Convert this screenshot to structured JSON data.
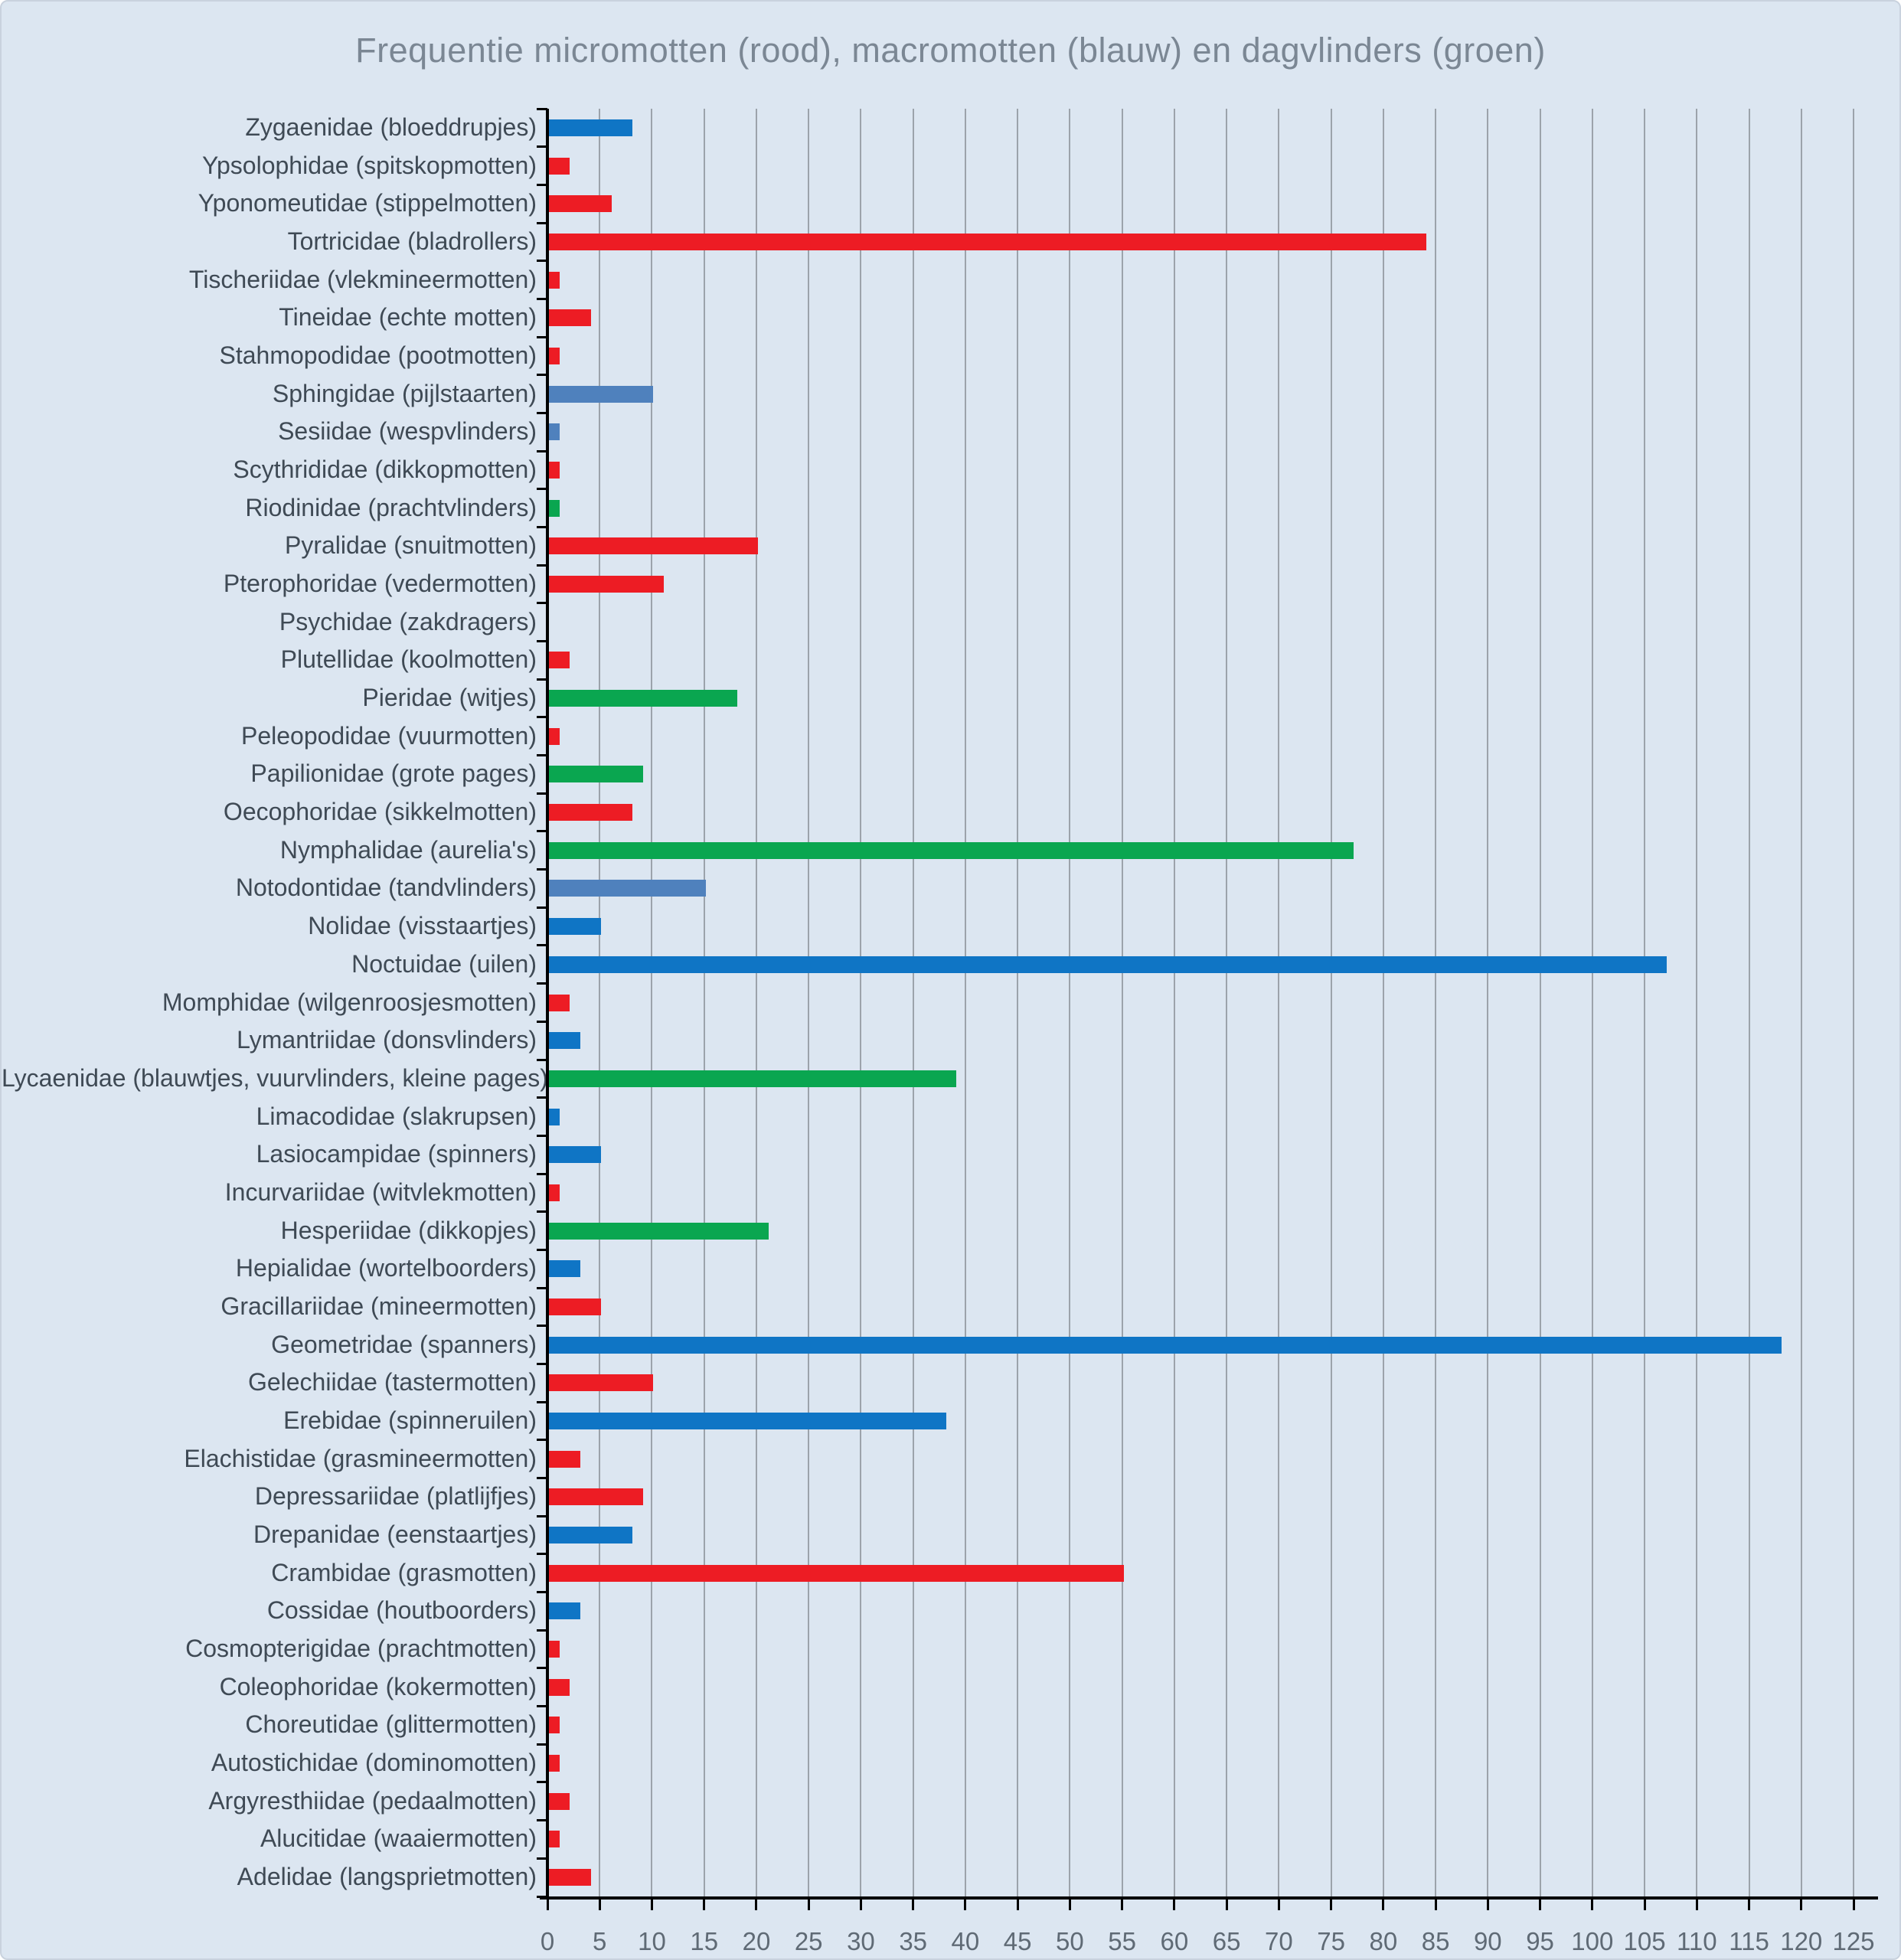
{
  "chart_data": {
    "type": "bar",
    "orientation": "horizontal",
    "title": "Frequentie micromotten (rood), macromotten (blauw) en dagvlinders (groen)",
    "xlabel": "",
    "ylabel": "",
    "xlim": [
      0,
      125
    ],
    "tick_step": 5,
    "grid": true,
    "legend": "encoded in title (rood = micromotten, blauw = macromotten, groen = dagvlinders)",
    "colors": {
      "red": "#ed1c24",
      "blue": "#0f75c5",
      "steelblue": "#4f81bd",
      "green": "#0aa650"
    },
    "style": {
      "background": "#dce6f1",
      "gridline_color": "#9ca3ab",
      "axis_color": "#000000",
      "title_color": "#7b8794",
      "label_color": "#3f4a55",
      "tick_label_color": "#5f6a75"
    },
    "items": [
      {
        "label": "Zygaenidae (bloeddrupjes)",
        "value": 8,
        "color": "blue"
      },
      {
        "label": "Ypsolophidae (spitskopmotten)",
        "value": 2,
        "color": "red"
      },
      {
        "label": "Yponomeutidae (stippelmotten)",
        "value": 6,
        "color": "red"
      },
      {
        "label": "Tortricidae (bladrollers)",
        "value": 84,
        "color": "red"
      },
      {
        "label": "Tischeriidae (vlekmineermotten)",
        "value": 1,
        "color": "red"
      },
      {
        "label": "Tineidae (echte motten)",
        "value": 4,
        "color": "red"
      },
      {
        "label": "Stahmopodidae (pootmotten)",
        "value": 1,
        "color": "red"
      },
      {
        "label": "Sphingidae (pijlstaarten)",
        "value": 10,
        "color": "steelblue"
      },
      {
        "label": "Sesiidae (wespvlinders)",
        "value": 1,
        "color": "steelblue"
      },
      {
        "label": "Scythrididae (dikkopmotten)",
        "value": 1,
        "color": "red"
      },
      {
        "label": "Riodinidae (prachtvlinders)",
        "value": 1,
        "color": "green"
      },
      {
        "label": "Pyralidae (snuitmotten)",
        "value": 20,
        "color": "red"
      },
      {
        "label": "Pterophoridae (vedermotten)",
        "value": 11,
        "color": "red"
      },
      {
        "label": "Psychidae (zakdragers)",
        "value": 0,
        "color": "red"
      },
      {
        "label": "Plutellidae (koolmotten)",
        "value": 2,
        "color": "red"
      },
      {
        "label": "Pieridae (witjes)",
        "value": 18,
        "color": "green"
      },
      {
        "label": "Peleopodidae (vuurmotten)",
        "value": 1,
        "color": "red"
      },
      {
        "label": "Papilionidae (grote pages)",
        "value": 9,
        "color": "green"
      },
      {
        "label": "Oecophoridae (sikkelmotten)",
        "value": 8,
        "color": "red"
      },
      {
        "label": "Nymphalidae (aurelia's)",
        "value": 77,
        "color": "green"
      },
      {
        "label": "Notodontidae (tandvlinders)",
        "value": 15,
        "color": "steelblue"
      },
      {
        "label": "Nolidae (visstaartjes)",
        "value": 5,
        "color": "blue"
      },
      {
        "label": "Noctuidae (uilen)",
        "value": 107,
        "color": "blue"
      },
      {
        "label": "Momphidae (wilgenroosjesmotten)",
        "value": 2,
        "color": "red"
      },
      {
        "label": "Lymantriidae (donsvlinders)",
        "value": 3,
        "color": "blue"
      },
      {
        "label": "Lycaenidae (blauwtjes, vuurvlinders, kleine pages)",
        "value": 39,
        "color": "green"
      },
      {
        "label": "Limacodidae (slakrupsen)",
        "value": 1,
        "color": "blue"
      },
      {
        "label": "Lasiocampidae (spinners)",
        "value": 5,
        "color": "blue"
      },
      {
        "label": "Incurvariidae (witvlekmotten)",
        "value": 1,
        "color": "red"
      },
      {
        "label": "Hesperiidae (dikkopjes)",
        "value": 21,
        "color": "green"
      },
      {
        "label": "Hepialidae (wortelboorders)",
        "value": 3,
        "color": "blue"
      },
      {
        "label": "Gracillariidae (mineermotten)",
        "value": 5,
        "color": "red"
      },
      {
        "label": "Geometridae (spanners)",
        "value": 118,
        "color": "blue"
      },
      {
        "label": "Gelechiidae (tastermotten)",
        "value": 10,
        "color": "red"
      },
      {
        "label": "Erebidae (spinneruilen)",
        "value": 38,
        "color": "blue"
      },
      {
        "label": "Elachistidae (grasmineermotten)",
        "value": 3,
        "color": "red"
      },
      {
        "label": "Depressariidae (platlijfjes)",
        "value": 9,
        "color": "red"
      },
      {
        "label": "Drepanidae (eenstaartjes)",
        "value": 8,
        "color": "blue"
      },
      {
        "label": "Crambidae (grasmotten)",
        "value": 55,
        "color": "red"
      },
      {
        "label": "Cossidae (houtboorders)",
        "value": 3,
        "color": "blue"
      },
      {
        "label": "Cosmopterigidae (prachtmotten)",
        "value": 1,
        "color": "red"
      },
      {
        "label": "Coleophoridae (kokermotten)",
        "value": 2,
        "color": "red"
      },
      {
        "label": "Choreutidae (glittermotten)",
        "value": 1,
        "color": "red"
      },
      {
        "label": "Autostichidae (dominomotten)",
        "value": 1,
        "color": "red"
      },
      {
        "label": "Argyresthiidae (pedaalmotten)",
        "value": 2,
        "color": "red"
      },
      {
        "label": "Alucitidae (waaiermotten)",
        "value": 1,
        "color": "red"
      },
      {
        "label": "Adelidae (langsprietmotten)",
        "value": 4,
        "color": "red"
      }
    ]
  }
}
